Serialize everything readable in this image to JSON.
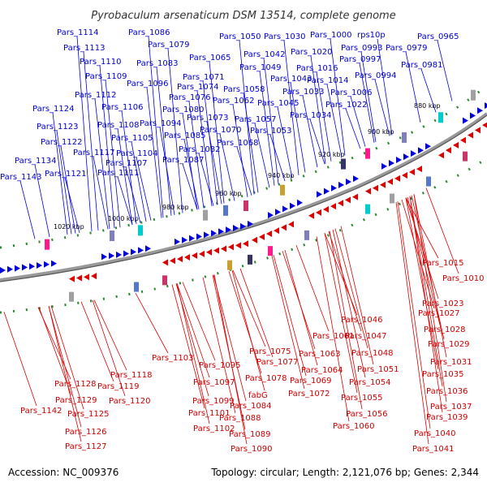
{
  "title": "Pyrobaculum arsenaticum DSM 13514, complete genome",
  "footer": {
    "accession": "Accession: NC_009376",
    "summary": "Topology: circular; Length: 2,121,076 bp; Genes: 2,344"
  },
  "colors": {
    "forward": "#0000dd",
    "reverse": "#dd0000",
    "backbone": "#808080",
    "gc_tick": "#2a8a2a"
  },
  "kbp_ticks": [
    "880 kbp",
    "900 kbp",
    "920 kbp",
    "940 kbp",
    "960 kbp",
    "980 kbp",
    "1000 kbp",
    "1020 kbp"
  ],
  "forward_genes": [
    "Pars_1114",
    "Pars_1086",
    "Pars_1050",
    "Pars_1030",
    "Pars_1000",
    "rps10p",
    "Pars_0965",
    "Pars_1113",
    "Pars_1079",
    "Pars_1042",
    "Pars_1020",
    "Pars_0993",
    "Pars_0979",
    "Pars_1110",
    "Pars_1083",
    "Pars_1065",
    "Pars_1049",
    "Pars_1016",
    "Pars_0997",
    "Pars_0981",
    "Pars_1109",
    "Pars_1071",
    "Pars_1043",
    "Pars_1014",
    "Pars_0994",
    "Pars_1096",
    "Pars_1074",
    "Pars_1058",
    "Pars_1033",
    "Pars_1006",
    "Pars_1112",
    "Pars_1076",
    "Pars_1062",
    "Pars_1045",
    "Pars_1022",
    "Pars_1124",
    "Pars_1106",
    "Pars_1080",
    "Pars_1034",
    "Pars_1073",
    "Pars_1057",
    "Pars_1094",
    "Pars_1123",
    "Pars_1108",
    "Pars_1070",
    "Pars_1053",
    "Pars_1085",
    "Pars_1122",
    "Pars_1105",
    "Pars_1068",
    "Pars_1117",
    "Pars_1104",
    "Pars_1082",
    "Pars_1134",
    "Pars_1107",
    "Pars_1087",
    "Pars_1121",
    "Pars_1111",
    "Pars_1143"
  ],
  "reverse_genes": [
    "Pars_1015",
    "Pars_1010",
    "Pars_1023",
    "Pars_1027",
    "Pars_1046",
    "Pars_1028",
    "Pars_1061",
    "Pars_1047",
    "Pars_1029",
    "Pars_1075",
    "Pars_1063",
    "Pars_1048",
    "Pars_1103",
    "Pars_1077",
    "Pars_1031",
    "Pars_1095",
    "Pars_1064",
    "Pars_1051",
    "Pars_1118",
    "Pars_1078",
    "Pars_1069",
    "Pars_1054",
    "Pars_1035",
    "Pars_1097",
    "Pars_1128",
    "Pars_1119",
    "Pars_1072",
    "Pars_1036",
    "fabG",
    "Pars_1129",
    "Pars_1120",
    "Pars_1099",
    "Pars_1084",
    "Pars_1055",
    "Pars_1037",
    "Pars_1088",
    "Pars_1101",
    "Pars_1056",
    "Pars_1039",
    "Pars_1142",
    "Pars_1125",
    "Pars_1102",
    "Pars_1060",
    "Pars_1089",
    "Pars_1040",
    "Pars_1126",
    "Pars_1090",
    "Pars_1127",
    "Pars_1041"
  ]
}
